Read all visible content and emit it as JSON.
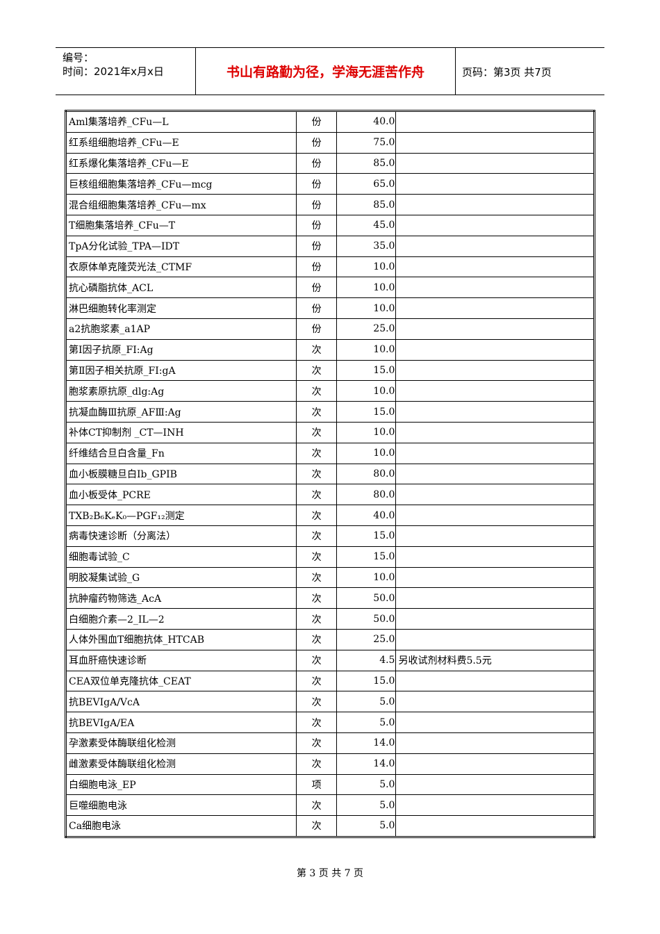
{
  "header": {
    "number": "编号：",
    "time": "时间：2021年x月x日",
    "slogan": "书山有路勤为径，学海无涯苦作舟",
    "page": "页码：第3页  共7页"
  },
  "table": {
    "rows": [
      [
        "Aml集落培养_CFu—L",
        "份",
        "40.0"
      ],
      [
        "红系组细胞培养_CFu—E",
        "份",
        "75.0"
      ],
      [
        "红系爆化集落培养_CFu—E",
        "份",
        "85.0"
      ],
      [
        "巨核组细胞集落培养_CFu—mcg",
        "份",
        "65.0"
      ],
      [
        "混合组细胞集落培养_CFu—mx",
        "份",
        "85.0"
      ],
      [
        "T细胞集落培养_CFu—T",
        "份",
        "45.0"
      ],
      [
        "TpA分化试验_TPA—IDT",
        "份",
        "35.0"
      ],
      [
        "衣原体单克隆荧光法_CTMF",
        "份",
        "10.0"
      ],
      [
        "抗心磷脂抗体_ACL",
        "份",
        "10.0"
      ],
      [
        "淋巴细胞转化率测定",
        "份",
        "10.0"
      ],
      [
        "a2抗胞浆素_a1AP",
        "份",
        "25.0"
      ],
      [
        "第Ⅰ因子抗原_FI:Ag",
        "次",
        "10.0"
      ],
      [
        "第Ⅱ因子相关抗原_FI:gA",
        "次",
        "15.0"
      ],
      [
        "胞浆素原抗原_dlg:Ag",
        "次",
        "10.0"
      ],
      [
        "抗凝血酶Ⅲ抗原_AFⅢ:Ag",
        "次",
        "15.0"
      ],
      [
        "补体CT抑制剂 _CT—INH",
        "次",
        "10.0"
      ],
      [
        "纤维结合旦白含量_Fn",
        "次",
        "10.0"
      ],
      [
        "血小板膜糖旦白Ib_GPIB",
        "次",
        "80.0"
      ],
      [
        "血小板受体_PCRE",
        "次",
        "80.0"
      ],
      [
        "TXB₂B₆KₑK₀—PGF₁₂测定",
        "次",
        "40.0"
      ],
      [
        "病毒快速诊断（分离法）",
        "次",
        "15.0"
      ],
      [
        "细胞毒试验_C",
        "次",
        "15.0"
      ],
      [
        "明胶凝集试验_G",
        "次",
        "10.0"
      ],
      [
        "抗肿瘤药物筛选_AcA",
        "次",
        "50.0"
      ],
      [
        "白细胞介素—2_IL—2",
        "次",
        "50.0"
      ],
      [
        "人体外围血T细胞抗体_HTCAB",
        "次",
        "25.0"
      ],
      [
        "耳血肝癌快速诊断",
        "次",
        "4.5",
        "另收试剂材料费5.5元"
      ],
      [
        "CEA双位单克隆抗体_CEAT",
        "次",
        "15.0"
      ],
      [
        "抗BEVIgA/VcA",
        "次",
        "5.0"
      ],
      [
        "抗BEVIgA/EA",
        "次",
        "5.0"
      ],
      [
        "孕激素受体酶联组化检测",
        "次",
        "14.0"
      ],
      [
        "雌激素受体酶联组化检测",
        "次",
        "14.0"
      ],
      [
        "白细胞电泳_EP",
        "项",
        "5.0"
      ],
      [
        "巨噬细胞电泳",
        "次",
        "5.0"
      ],
      [
        "Ca细胞电泳",
        "次",
        "5.0"
      ]
    ]
  },
  "footer": "第 3 页 共 7 页"
}
